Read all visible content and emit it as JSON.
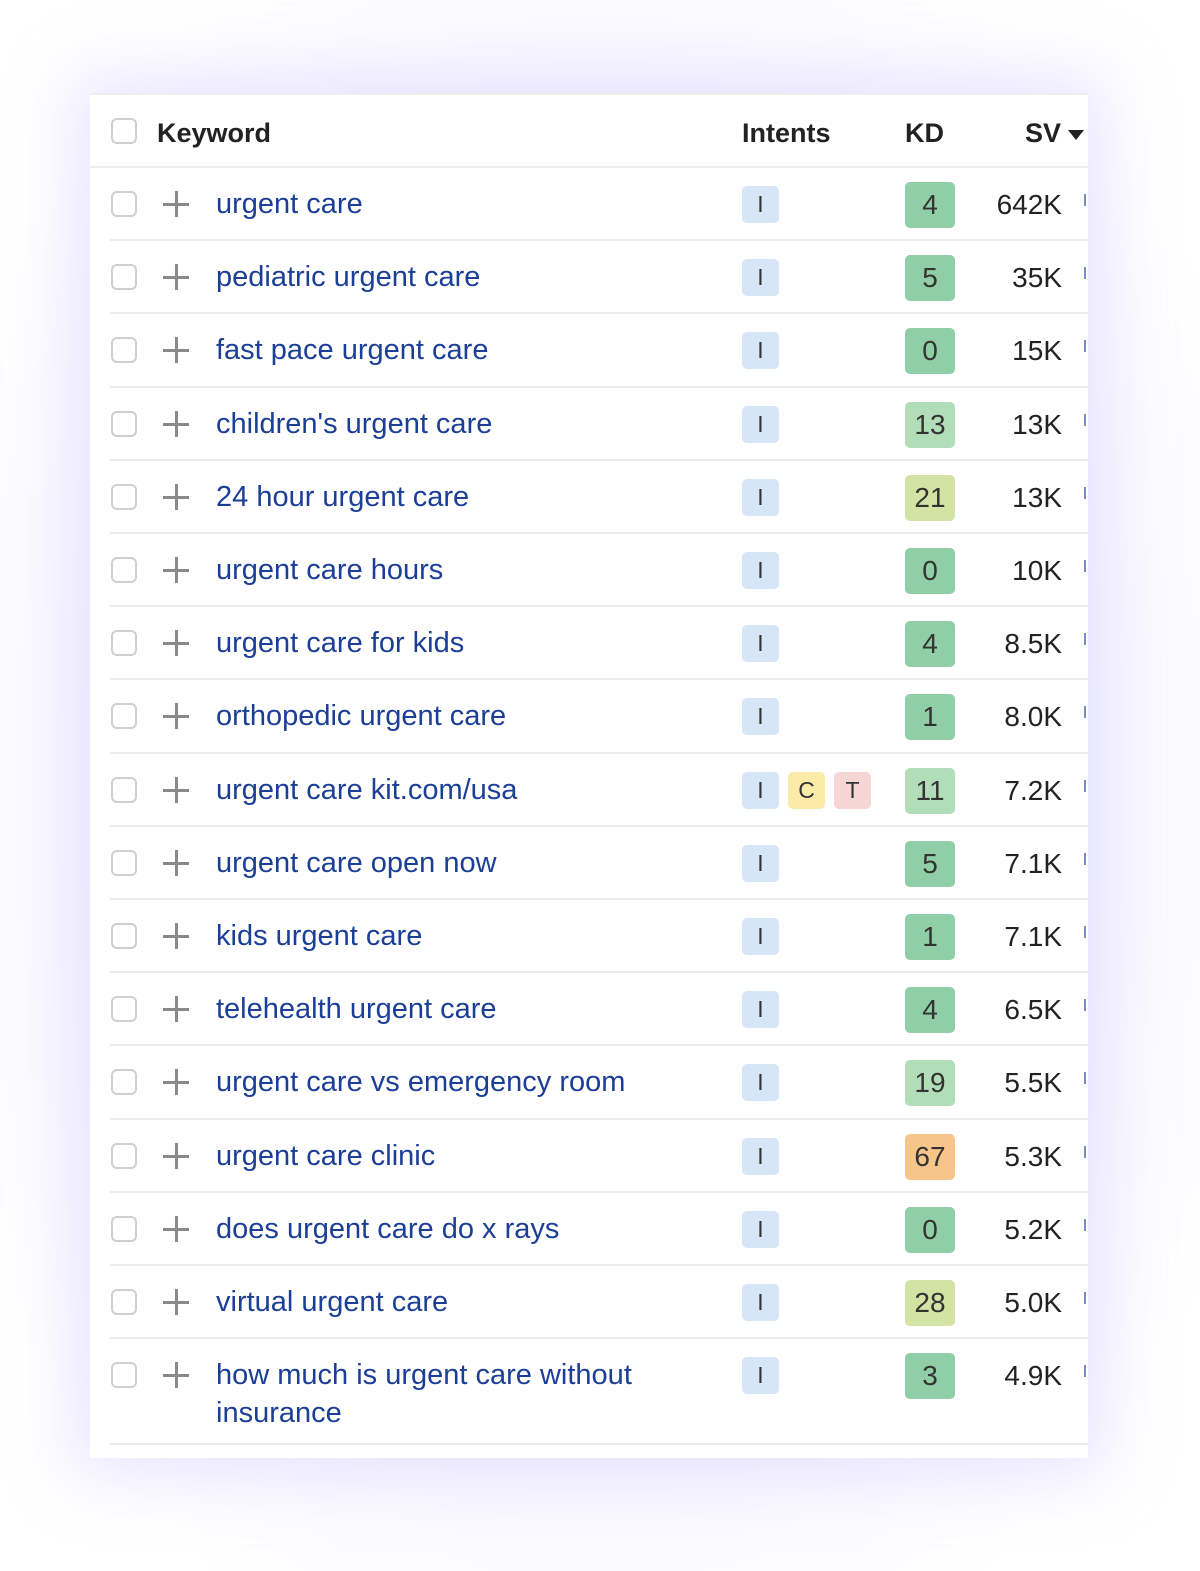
{
  "columns": {
    "keyword": "Keyword",
    "intents": "Intents",
    "kd": "KD",
    "sv": "SV"
  },
  "kd_colors": {
    "dark_green": "#8fcea7",
    "light_green": "#b2ddb9",
    "yellow_green": "#d2e3a3",
    "orange": "#f7c48a"
  },
  "intent_colors": {
    "I": "#d6e6f6",
    "C": "#fbeaa8",
    "T": "#f6d5d5"
  },
  "rows": [
    {
      "keyword": "urgent care",
      "intents": [
        "I"
      ],
      "kd": "4",
      "sv": "642K"
    },
    {
      "keyword": "pediatric urgent care",
      "intents": [
        "I"
      ],
      "kd": "5",
      "sv": "35K"
    },
    {
      "keyword": "fast pace urgent care",
      "intents": [
        "I"
      ],
      "kd": "0",
      "sv": "15K"
    },
    {
      "keyword": "children's urgent care",
      "intents": [
        "I"
      ],
      "kd": "13",
      "sv": "13K"
    },
    {
      "keyword": "24 hour urgent care",
      "intents": [
        "I"
      ],
      "kd": "21",
      "sv": "13K"
    },
    {
      "keyword": "urgent care hours",
      "intents": [
        "I"
      ],
      "kd": "0",
      "sv": "10K"
    },
    {
      "keyword": "urgent care for kids",
      "intents": [
        "I"
      ],
      "kd": "4",
      "sv": "8.5K"
    },
    {
      "keyword": "orthopedic urgent care",
      "intents": [
        "I"
      ],
      "kd": "1",
      "sv": "8.0K"
    },
    {
      "keyword": "urgent care kit.com/usa",
      "intents": [
        "I",
        "C",
        "T"
      ],
      "kd": "11",
      "sv": "7.2K"
    },
    {
      "keyword": "urgent care open now",
      "intents": [
        "I"
      ],
      "kd": "5",
      "sv": "7.1K"
    },
    {
      "keyword": "kids urgent care",
      "intents": [
        "I"
      ],
      "kd": "1",
      "sv": "7.1K"
    },
    {
      "keyword": "telehealth urgent care",
      "intents": [
        "I"
      ],
      "kd": "4",
      "sv": "6.5K"
    },
    {
      "keyword": "urgent care vs emergency room",
      "intents": [
        "I"
      ],
      "kd": "19",
      "sv": "5.5K"
    },
    {
      "keyword": "urgent care clinic",
      "intents": [
        "I"
      ],
      "kd": "67",
      "sv": "5.3K"
    },
    {
      "keyword": "does urgent care do x rays",
      "intents": [
        "I"
      ],
      "kd": "0",
      "sv": "5.2K"
    },
    {
      "keyword": "virtual urgent care",
      "intents": [
        "I"
      ],
      "kd": "28",
      "sv": "5.0K"
    },
    {
      "keyword": "how much is urgent care without insurance",
      "intents": [
        "I"
      ],
      "kd": "3",
      "sv": "4.9K"
    }
  ]
}
